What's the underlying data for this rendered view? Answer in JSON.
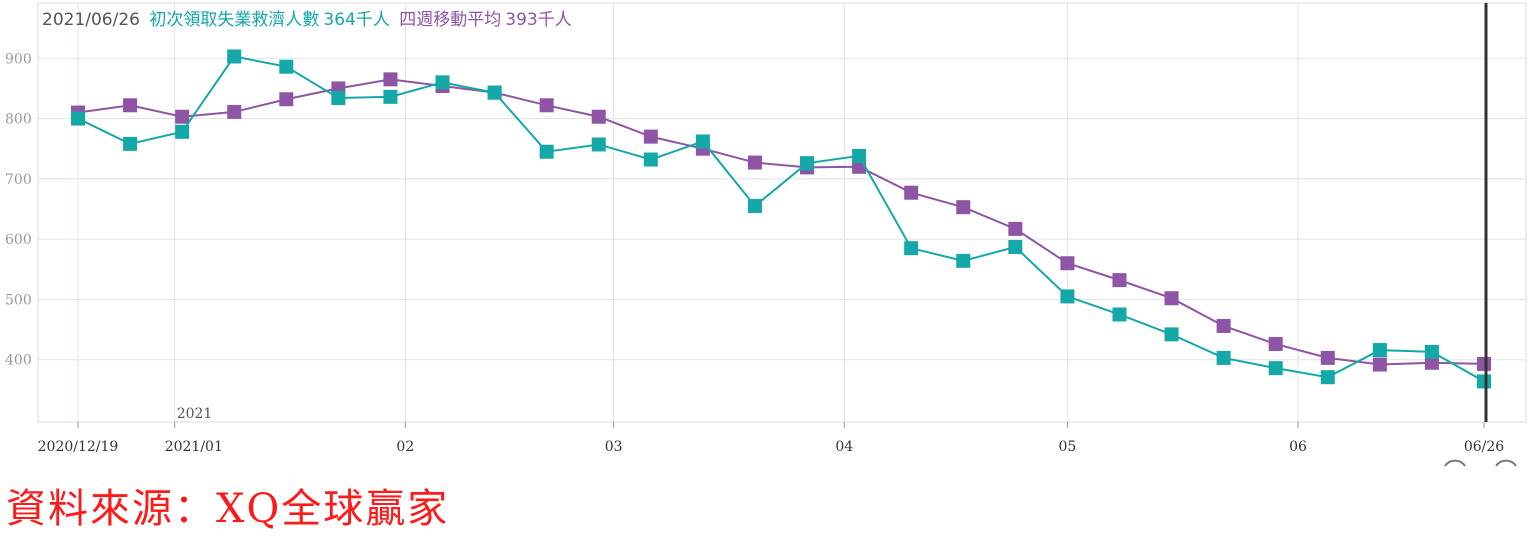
{
  "legend": {
    "date": "2021/06/26",
    "series1_label": "初次領取失業救濟人數",
    "series1_value": "364千人",
    "series2_label": "四週移動平均",
    "series2_value": "393千人"
  },
  "source_text": "資料來源：XQ全球贏家",
  "colors": {
    "teal": "#14a8a8",
    "purple": "#8e55a6",
    "grid": "#e3e3e3",
    "axis_text": "#333333",
    "source": "#ff1a1a"
  },
  "chart_data": {
    "type": "line",
    "x": [
      "2020/12/19",
      "2020/12/26",
      "2021/01/02",
      "2021/01/09",
      "2021/01/16",
      "2021/01/23",
      "2021/01/30",
      "2021/02/06",
      "2021/02/13",
      "2021/02/20",
      "2021/02/27",
      "2021/03/06",
      "2021/03/13",
      "2021/03/20",
      "2021/03/27",
      "2021/04/03",
      "2021/04/10",
      "2021/04/17",
      "2021/04/24",
      "2021/05/01",
      "2021/05/08",
      "2021/05/15",
      "2021/05/22",
      "2021/05/29",
      "2021/06/05",
      "2021/06/12",
      "2021/06/19",
      "2021/06/26"
    ],
    "series": [
      {
        "name": "初次領取失業救濟人數",
        "color": "#14a8a8",
        "values": [
          800,
          758,
          778,
          903,
          886,
          834,
          836,
          860,
          843,
          745,
          757,
          732,
          762,
          655,
          726,
          738,
          585,
          564,
          587,
          505,
          475,
          442,
          403,
          386,
          371,
          416,
          413,
          364
        ]
      },
      {
        "name": "四週移動平均",
        "color": "#8e55a6",
        "values": [
          810,
          822,
          803,
          811,
          832,
          850,
          865,
          854,
          843,
          822,
          803,
          770,
          750,
          727,
          719,
          720,
          677,
          653,
          617,
          560,
          532,
          502,
          456,
          426,
          403,
          392,
          395,
          393
        ]
      }
    ],
    "x_tick_labels": [
      {
        "label": "2020/12/19",
        "date": "2020/12/19"
      },
      {
        "label": "2021/01",
        "date": "2021/01/01"
      },
      {
        "label": "02",
        "date": "2021/02/01"
      },
      {
        "label": "03",
        "date": "2021/03/01"
      },
      {
        "label": "04",
        "date": "2021/04/01"
      },
      {
        "label": "05",
        "date": "2021/05/01"
      },
      {
        "label": "06",
        "date": "2021/06/01"
      },
      {
        "label": "06/26",
        "date": "2021/06/26"
      }
    ],
    "year_marker": {
      "label": "2021",
      "date": "2021/01/01"
    },
    "y_ticks": [
      400,
      500,
      600,
      700,
      800,
      900
    ],
    "ylim": [
      300,
      990
    ],
    "xlim": [
      "2020/12/19",
      "2021/06/26"
    ],
    "cursor_date": "2021/06/26",
    "grid": true
  }
}
